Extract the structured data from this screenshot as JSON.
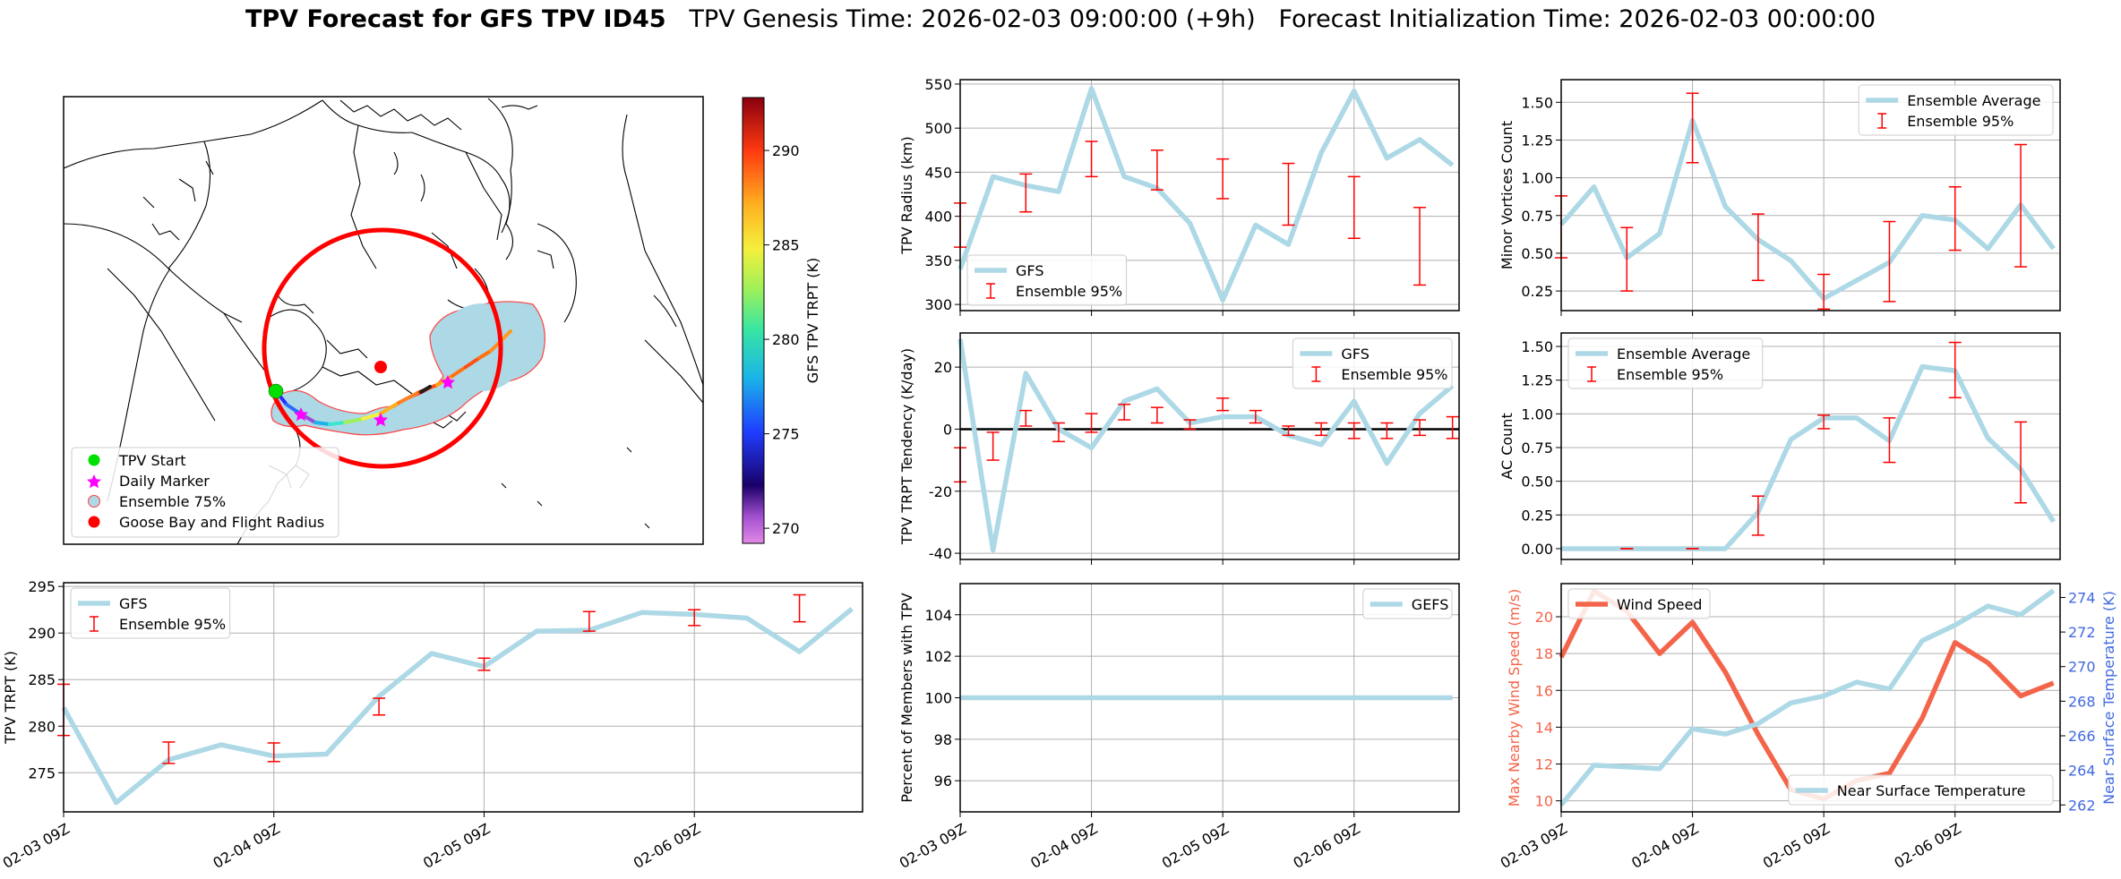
{
  "title": {
    "main": "TPV Forecast for GFS TPV ID45",
    "genesis": "TPV Genesis Time: 2026-02-03 09:00:00 (+9h)",
    "init": "Forecast Initialization Time: 2026-02-03 00:00:00"
  },
  "colors": {
    "line": "#add8e6",
    "err": "#ff0000",
    "wind": "#f4644a",
    "temp": "#add8e6",
    "tempAxis": "#4169e1",
    "windAxis": "#f4644a"
  },
  "map": {
    "legend": [
      "TPV Start",
      "Daily Marker",
      "Ensemble 75%",
      "Goose Bay and Flight Radius"
    ],
    "colorbar": {
      "label": "GFS TPV TRPT (K)",
      "ticks": [
        270,
        275,
        280,
        285,
        290
      ],
      "min": 269.2,
      "max": 292.8
    }
  },
  "chart_data": [
    {
      "id": "radius",
      "type": "line",
      "ylabel": "TPV Radius (km)",
      "ylim": [
        293,
        555
      ],
      "yticks": [
        300,
        350,
        400,
        450,
        500,
        550
      ],
      "x": [
        0,
        1,
        2,
        3,
        4,
        5,
        6,
        7,
        8,
        9,
        10,
        11,
        12,
        13,
        14,
        15
      ],
      "series": [
        {
          "name": "GFS",
          "values": [
            340,
            445,
            435,
            428,
            545,
            445,
            432,
            392,
            305,
            390,
            368,
            472,
            542,
            466,
            487,
            458
          ]
        }
      ],
      "errorbars": {
        "name": "Ensemble 95%",
        "x": [
          0,
          2,
          4,
          6,
          8,
          10,
          12,
          14
        ],
        "low": [
          365,
          405,
          445,
          430,
          420,
          390,
          375,
          322
        ],
        "high": [
          415,
          448,
          485,
          475,
          465,
          460,
          445,
          410
        ]
      },
      "legend": [
        "GFS",
        "Ensemble 95%"
      ],
      "legendPos": "lower-left",
      "showXTicks": false
    },
    {
      "id": "tendency",
      "type": "line",
      "ylabel": "TPV TRPT Tendency (K/day)",
      "ylim": [
        -42,
        31
      ],
      "yticks": [
        -40,
        -20,
        0,
        20
      ],
      "x": [
        0,
        1,
        2,
        3,
        4,
        5,
        6,
        7,
        8,
        9,
        10,
        11,
        12,
        13,
        14,
        15
      ],
      "series": [
        {
          "name": "GFS",
          "values": [
            29,
            -39,
            18,
            0,
            -6,
            9,
            13,
            2,
            4,
            4,
            -2,
            -5,
            9,
            -11,
            5,
            14
          ]
        }
      ],
      "errorbars": {
        "name": "Ensemble 95%",
        "x": [
          0,
          1,
          2,
          3,
          4,
          5,
          6,
          7,
          8,
          9,
          10,
          11,
          12,
          13,
          14,
          15
        ],
        "low": [
          -17,
          -10,
          1,
          -4,
          -1,
          3,
          2,
          0,
          6,
          2,
          -2,
          -2,
          -3,
          -3,
          -2,
          -3
        ],
        "high": [
          -6,
          -1,
          6,
          2,
          5,
          8,
          7,
          3,
          10,
          6,
          1,
          2,
          2,
          2,
          3,
          4
        ]
      },
      "zeroline": true,
      "legend": [
        "GFS",
        "Ensemble 95%"
      ],
      "legendPos": "upper-right",
      "showXTicks": false
    },
    {
      "id": "members",
      "type": "line",
      "ylabel": "Percent of Members with TPV",
      "ylim": [
        94.5,
        105.5
      ],
      "yticks": [
        96,
        98,
        100,
        102,
        104
      ],
      "x": [
        0,
        1,
        2,
        3,
        4,
        5,
        6,
        7,
        8,
        9,
        10,
        11,
        12,
        13,
        14,
        15
      ],
      "series": [
        {
          "name": "GEFS",
          "values": [
            100,
            100,
            100,
            100,
            100,
            100,
            100,
            100,
            100,
            100,
            100,
            100,
            100,
            100,
            100,
            100
          ]
        }
      ],
      "legend": [
        "GEFS"
      ],
      "legendPos": "upper-right",
      "xlabels": [
        "02-03 09Z",
        "02-04 09Z",
        "02-05 09Z",
        "02-06 09Z"
      ],
      "xlabelPos": [
        0,
        4,
        8,
        12
      ],
      "showXTicks": true
    },
    {
      "id": "minor",
      "type": "line",
      "ylabel": "Minor Vortices Count",
      "ylim": [
        0.12,
        1.65
      ],
      "yticks": [
        0.25,
        0.5,
        0.75,
        1.0,
        1.25,
        1.5
      ],
      "ytickLabels": [
        "0.25",
        "0.50",
        "0.75",
        "1.00",
        "1.25",
        "1.50"
      ],
      "x": [
        0,
        1,
        2,
        3,
        4,
        5,
        6,
        7,
        8,
        9,
        10,
        11,
        12,
        13,
        14,
        15
      ],
      "series": [
        {
          "name": "Ensemble Average",
          "values": [
            0.69,
            0.94,
            0.47,
            0.63,
            1.38,
            0.81,
            0.59,
            0.45,
            0.2,
            0.32,
            0.44,
            0.75,
            0.72,
            0.53,
            0.82,
            0.53
          ]
        }
      ],
      "errorbars": {
        "name": "Ensemble 95%",
        "x": [
          0,
          2,
          4,
          6,
          8,
          10,
          12,
          14
        ],
        "low": [
          0.47,
          0.25,
          1.1,
          0.32,
          0.13,
          0.18,
          0.52,
          0.41
        ],
        "high": [
          0.88,
          0.67,
          1.56,
          0.76,
          0.36,
          0.71,
          0.94,
          1.22
        ]
      },
      "legend": [
        "Ensemble Average",
        "Ensemble 95%"
      ],
      "legendPos": "upper-right",
      "showXTicks": false
    },
    {
      "id": "ac",
      "type": "line",
      "ylabel": "AC Count",
      "ylim": [
        -0.08,
        1.6
      ],
      "yticks": [
        0.0,
        0.25,
        0.5,
        0.75,
        1.0,
        1.25,
        1.5
      ],
      "ytickLabels": [
        "0.00",
        "0.25",
        "0.50",
        "0.75",
        "1.00",
        "1.25",
        "1.50"
      ],
      "x": [
        0,
        1,
        2,
        3,
        4,
        5,
        6,
        7,
        8,
        9,
        10,
        11,
        12,
        13,
        14,
        15
      ],
      "series": [
        {
          "name": "Ensemble Average",
          "values": [
            0,
            0,
            0,
            0,
            0,
            0,
            0.27,
            0.81,
            0.97,
            0.97,
            0.8,
            1.35,
            1.32,
            0.82,
            0.59,
            0.2
          ]
        }
      ],
      "errorbars": {
        "name": "Ensemble 95%",
        "x": [
          2,
          4,
          6,
          8,
          10,
          12,
          14
        ],
        "low": [
          0,
          0,
          0.1,
          0.89,
          0.64,
          1.12,
          0.34
        ],
        "high": [
          0,
          0,
          0.39,
          0.99,
          0.97,
          1.53,
          0.94
        ]
      },
      "legend": [
        "Ensemble Average",
        "Ensemble 95%"
      ],
      "legendPos": "upper-left",
      "showXTicks": false
    },
    {
      "id": "trpt",
      "type": "line",
      "ylabel": "TPV TRPT (K)",
      "ylim": [
        270.8,
        295.4
      ],
      "yticks": [
        275,
        280,
        285,
        290,
        295
      ],
      "x": [
        0,
        1,
        2,
        3,
        4,
        5,
        6,
        7,
        8,
        9,
        10,
        11,
        12,
        13,
        14,
        15
      ],
      "series": [
        {
          "name": "GFS",
          "values": [
            282,
            271.8,
            276.4,
            278,
            276.8,
            277,
            283.2,
            287.8,
            286.4,
            290.2,
            290.3,
            292.2,
            292,
            291.6,
            288,
            292.6
          ]
        }
      ],
      "errorbars": {
        "name": "Ensemble 95%",
        "x": [
          0,
          2,
          4,
          6,
          8,
          10,
          12,
          14
        ],
        "low": [
          279,
          276,
          276.2,
          281.2,
          286,
          290.2,
          290.8,
          291.2
        ],
        "high": [
          284.5,
          278.3,
          278.2,
          283,
          287.3,
          292.3,
          292.5,
          294.1
        ]
      },
      "legend": [
        "GFS",
        "Ensemble 95%"
      ],
      "legendPos": "upper-left",
      "xlabels": [
        "02-03 09Z",
        "02-04 09Z",
        "02-05 09Z",
        "02-06 09Z"
      ],
      "xlabelPos": [
        0,
        4,
        8,
        12
      ],
      "showXTicks": true
    },
    {
      "id": "wind",
      "type": "line",
      "dualAxis": true,
      "ylabel": "Max Nearby Wind Speed (m/s)",
      "ylim": [
        9.4,
        21.8
      ],
      "yticks": [
        10,
        12,
        14,
        16,
        18,
        20
      ],
      "ylabel2": "Near Surface Temperature (K)",
      "ylim2": [
        261.6,
        274.8
      ],
      "yticks2": [
        262,
        264,
        266,
        268,
        270,
        272,
        274
      ],
      "x": [
        0,
        1,
        2,
        3,
        4,
        5,
        6,
        7,
        8,
        9,
        10,
        11,
        12,
        13,
        14,
        15
      ],
      "series": [
        {
          "name": "Wind Speed",
          "axis": "left",
          "values": [
            17.8,
            21.4,
            20.3,
            18,
            19.7,
            17,
            13.6,
            10.6,
            10.1,
            11.1,
            11.5,
            14.5,
            18.6,
            17.5,
            15.7,
            16.4
          ]
        },
        {
          "name": "Near Surface Temperature",
          "axis": "right",
          "values": [
            262,
            264.3,
            264.2,
            264.1,
            266.4,
            266.1,
            266.7,
            267.9,
            268.3,
            269.1,
            268.7,
            271.5,
            272.4,
            273.5,
            273,
            274.4
          ]
        }
      ],
      "legend": [
        "Wind Speed",
        "Near Surface Temperature"
      ],
      "xlabels": [
        "02-03 09Z",
        "02-04 09Z",
        "02-05 09Z",
        "02-06 09Z"
      ],
      "xlabelPos": [
        0,
        4,
        8,
        12
      ],
      "showXTicks": true
    }
  ]
}
